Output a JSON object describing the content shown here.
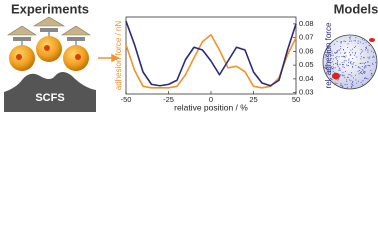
{
  "header": {
    "left": "Experiments",
    "right": "Models",
    "substrate": "SCFS"
  },
  "chart_data": {
    "type": "line",
    "xlabel": "relative position / %",
    "ylabel": "adhesion force / nN",
    "y2label": "rel. adhesion force",
    "x": [
      -50,
      -45,
      -40,
      -35,
      -30,
      -25,
      -20,
      -15,
      -10,
      -5,
      0,
      5,
      10,
      15,
      20,
      25,
      30,
      35,
      40,
      45,
      50
    ],
    "xlim": [
      -50,
      50
    ],
    "xticks": [
      -50,
      -25,
      0,
      25,
      50
    ],
    "ylim": [
      0,
      1
    ],
    "y2lim": [
      0.029,
      0.085
    ],
    "y2ticks": [
      0.03,
      0.04,
      0.05,
      0.06,
      0.07,
      0.08
    ],
    "series": [
      {
        "name": "adhesion force / nN",
        "color": "#f0932a",
        "values": [
          0.64,
          0.31,
          0.1,
          0.08,
          0.08,
          0.08,
          0.1,
          0.25,
          0.47,
          0.68,
          0.77,
          0.57,
          0.34,
          0.36,
          0.29,
          0.1,
          0.08,
          0.1,
          0.21,
          0.51,
          0.73
        ]
      },
      {
        "name": "rel. adhesion force",
        "color": "#2b2a7a",
        "axis": "y2",
        "values": [
          0.082,
          0.065,
          0.045,
          0.036,
          0.035,
          0.036,
          0.039,
          0.054,
          0.063,
          0.061,
          0.053,
          0.043,
          0.053,
          0.063,
          0.061,
          0.045,
          0.037,
          0.035,
          0.039,
          0.061,
          0.08
        ]
      }
    ]
  }
}
